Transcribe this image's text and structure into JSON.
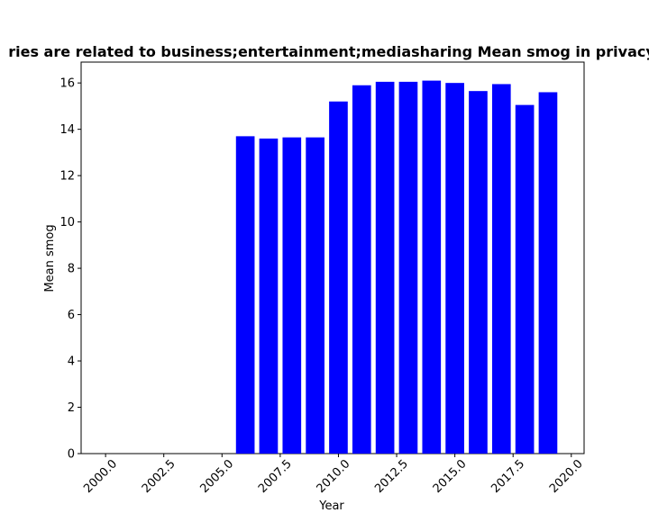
{
  "chart_data": {
    "type": "bar",
    "title": "ries are related to business;entertainment;mediasharing Mean smog in privacy",
    "xlabel": "Year",
    "ylabel": "Mean smog",
    "xlim": [
      1998.95,
      2020.55
    ],
    "ylim": [
      0,
      16.9
    ],
    "xticks": [
      2000.0,
      2002.5,
      2005.0,
      2007.5,
      2010.0,
      2012.5,
      2015.0,
      2017.5,
      2020.0
    ],
    "xtick_labels": [
      "2000.0",
      "2002.5",
      "2005.0",
      "2007.5",
      "2010.0",
      "2012.5",
      "2015.0",
      "2017.5",
      "2020.0"
    ],
    "yticks": [
      0,
      2,
      4,
      6,
      8,
      10,
      12,
      14,
      16
    ],
    "ytick_labels": [
      "0",
      "2",
      "4",
      "6",
      "8",
      "10",
      "12",
      "14",
      "16"
    ],
    "bar_width": 0.8,
    "grid": false,
    "series": [
      {
        "color": "#0000ff",
        "points": [
          {
            "x": 2006,
            "y": 13.7
          },
          {
            "x": 2007,
            "y": 13.6
          },
          {
            "x": 2008,
            "y": 13.65
          },
          {
            "x": 2009,
            "y": 13.65
          },
          {
            "x": 2010,
            "y": 15.2
          },
          {
            "x": 2011,
            "y": 15.9
          },
          {
            "x": 2012,
            "y": 16.05
          },
          {
            "x": 2013,
            "y": 16.05
          },
          {
            "x": 2014,
            "y": 16.1
          },
          {
            "x": 2015,
            "y": 16.0
          },
          {
            "x": 2016,
            "y": 15.65
          },
          {
            "x": 2017,
            "y": 15.95
          },
          {
            "x": 2018,
            "y": 15.05
          },
          {
            "x": 2019,
            "y": 15.6
          }
        ]
      }
    ]
  }
}
